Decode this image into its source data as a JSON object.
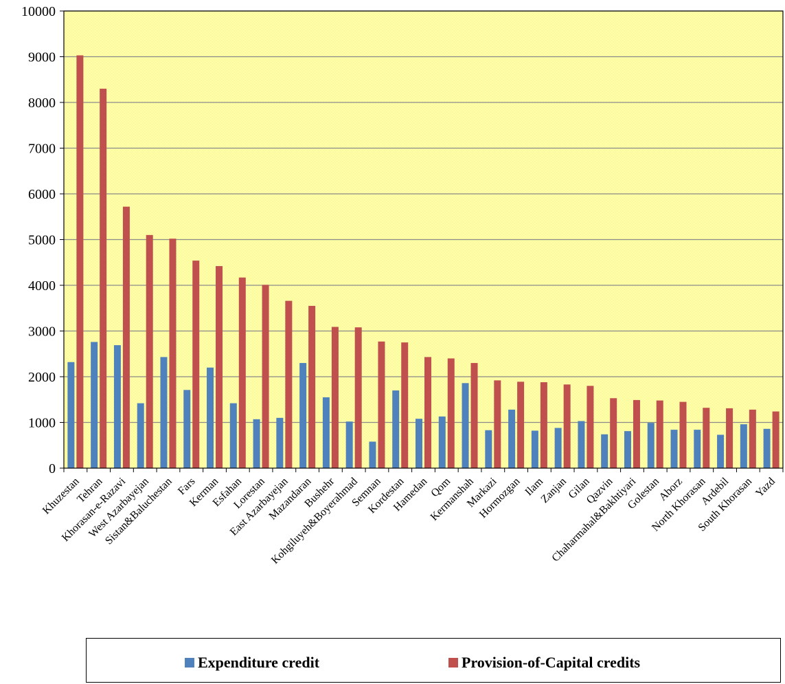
{
  "chart_data": {
    "type": "bar",
    "title": "",
    "xlabel": "",
    "ylabel": "",
    "ylim": [
      0,
      10000
    ],
    "yticks": [
      0,
      1000,
      2000,
      3000,
      4000,
      5000,
      6000,
      7000,
      8000,
      9000,
      10000
    ],
    "grid": true,
    "legend_position": "bottom",
    "categories": [
      "Khuzestan",
      "Tehran",
      "Khorasan-e-Razavi",
      "West Azarbayejan",
      "Sistan&Baluchestan",
      "Fars",
      "Kerman",
      "Esfahan",
      "Lorestan",
      "East Azarbayejan",
      "Mazandaran",
      "Bushehr",
      "Kohgiluyeh&Boyerahmad",
      "Semnan",
      "Kordestan",
      "Hamedan",
      "Qom",
      "Kermanshah",
      "Markazi",
      "Hormozgan",
      "Ilam",
      "Zanjan",
      "Gilan",
      "Qazvin",
      "Chaharmahal&Bakhtiyari",
      "Golestan",
      "Aborz",
      "North Khorasan",
      "Ardebil",
      "South Khorasan",
      "Yazd"
    ],
    "series": [
      {
        "name": "Expenditure credit",
        "color": "#4F81BD",
        "values": [
          2320,
          2760,
          2690,
          1420,
          2430,
          1710,
          2200,
          1420,
          1070,
          1100,
          2300,
          1550,
          1020,
          580,
          1700,
          1080,
          1130,
          1860,
          830,
          1280,
          820,
          880,
          1030,
          740,
          810,
          990,
          840,
          840,
          730,
          960,
          860
        ]
      },
      {
        "name": "Provision-of-Capital credits",
        "color": "#C0504D",
        "values": [
          9030,
          8300,
          5720,
          5100,
          5020,
          4540,
          4420,
          4170,
          4010,
          3660,
          3550,
          3090,
          3080,
          2770,
          2750,
          2430,
          2400,
          2300,
          1920,
          1890,
          1880,
          1830,
          1800,
          1530,
          1490,
          1480,
          1450,
          1320,
          1310,
          1280,
          1240
        ]
      }
    ]
  },
  "plot_background": "#FFFFA8",
  "legend": {
    "items": [
      "Expenditure credit",
      "Provision-of-Capital credits"
    ]
  }
}
